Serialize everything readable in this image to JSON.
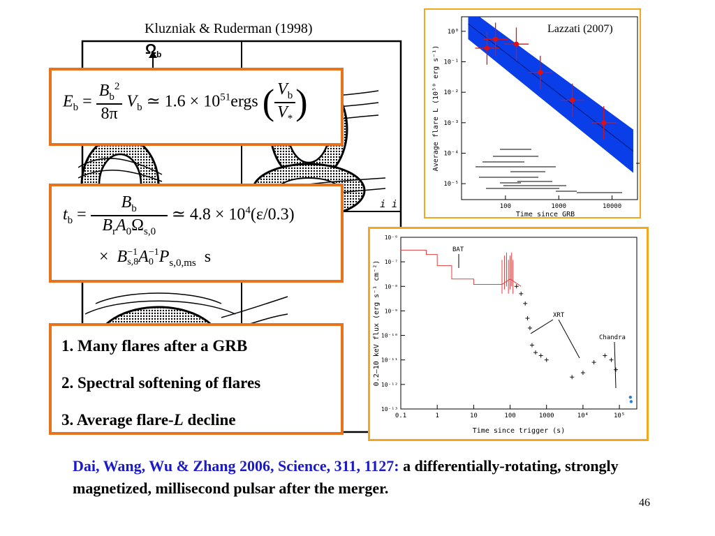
{
  "left_figure": {
    "caption": "Kluzniak & Ruderman (1998)",
    "omega_label": "Ω",
    "omega_sub": "b",
    "panel_label": "i i"
  },
  "equation1": {
    "lhs": "E",
    "lhs_sub": "b",
    "frac_num": "B",
    "frac_num_sub": "b",
    "frac_num_sup": "2",
    "frac_den": "8π",
    "v": "V",
    "v_sub": "b",
    "approx": "≃ 1.6 × 10",
    "exp": "51",
    "unit": "ergs",
    "paren_num": "V",
    "paren_num_sub": "b",
    "paren_den": "V",
    "paren_den_sub": "*"
  },
  "equation2": {
    "lhs": "t",
    "lhs_sub": "b",
    "frac_num": "B",
    "frac_num_sub": "b",
    "frac_den": "B",
    "frac_den_sub1": "r",
    "frac_den_mid": "A",
    "frac_den_sub2": "0",
    "frac_den_omega": "Ω",
    "frac_den_sub3": "s,0",
    "approx": "≃ 4.8 × 10",
    "exp": "4",
    "tail": "(ε/0.3)",
    "line2_times": "×",
    "line2_b": "B",
    "line2_b_sub": "s,8",
    "line2_b_sup": "−1",
    "line2_a": "A",
    "line2_a_sub": "0",
    "line2_a_sup": "−1",
    "line2_p": "P",
    "line2_p_sub": "s,0,ms",
    "line2_unit": "s"
  },
  "bullets": [
    {
      "text": "1. Many flares after a GRB"
    },
    {
      "text": "2. Spectral softening of flares"
    },
    {
      "text_pre": "3. Average flare-",
      "text_italic": "L",
      "text_post": " decline"
    }
  ],
  "top_chart": {
    "caption": "Lazzati (2007)",
    "xlabel": "Time since GRB",
    "ylabel": "Average flare L (10⁵⁰ erg s⁻¹)",
    "x_ticks": [
      "100",
      "1000",
      "10000"
    ],
    "y_ticks": [
      "10⁰",
      "10⁻¹",
      "10⁻²",
      "10⁻³",
      "10⁻⁴",
      "10⁻⁵"
    ]
  },
  "chart_data": [
    {
      "type": "scatter",
      "title": "",
      "caption": "Lazzati (2007)",
      "xlabel": "Time since GRB",
      "ylabel": "Average flare L (10⁵⁰ erg s⁻¹)",
      "x_scale": "log",
      "y_scale": "log",
      "xlim": [
        15,
        30000
      ],
      "ylim": [
        3e-06,
        3
      ],
      "points": [
        {
          "x": 45,
          "y": 0.28
        },
        {
          "x": 65,
          "y": 0.55
        },
        {
          "x": 160,
          "y": 0.38
        },
        {
          "x": 450,
          "y": 0.045
        },
        {
          "x": 1800,
          "y": 0.0055
        },
        {
          "x": 7000,
          "y": 0.001
        }
      ],
      "band_color": "#0a3ee8",
      "point_color": "#dd1111"
    },
    {
      "type": "line",
      "title": "",
      "xlabel": "Time since trigger (s)",
      "ylabel": "0.2–10 keV flux (erg s⁻¹ cm⁻²)",
      "x_scale": "log",
      "y_scale": "log",
      "xlim": [
        0.1,
        300000
      ],
      "ylim": [
        1e-13,
        1e-06
      ],
      "x_ticks": [
        "0.1",
        "1",
        "10",
        "100",
        "1000",
        "10⁴",
        "10⁵"
      ],
      "y_ticks": [
        "10⁻¹³",
        "10⁻¹²",
        "10⁻¹¹",
        "10⁻¹⁰",
        "10⁻⁹",
        "10⁻⁸",
        "10⁻⁷",
        "10⁻⁶"
      ],
      "annotations": [
        "BAT",
        "XRT",
        "Chandra"
      ],
      "series": [
        {
          "name": "BAT",
          "color": "#e04040",
          "x": [
            0.1,
            0.5,
            0.5,
            1,
            1,
            2.5,
            2.5,
            10,
            10,
            60,
            100,
            200
          ],
          "y": [
            3e-07,
            3e-07,
            2e-07,
            2e-07,
            7e-08,
            7e-08,
            2e-08,
            2e-08,
            1.2e-08,
            1.2e-08,
            2e-08,
            1e-08
          ]
        },
        {
          "name": "XRT",
          "color": "#111111",
          "x": [
            150,
            200,
            260,
            300,
            350,
            400,
            500,
            700,
            1000,
            5000,
            10000,
            20000,
            40000,
            60000,
            80000
          ],
          "y": [
            1e-08,
            5e-09,
            2e-09,
            5e-10,
            2e-10,
            4e-11,
            2e-11,
            1.5e-11,
            1e-11,
            2e-12,
            3e-12,
            8e-12,
            1.5e-11,
            1e-11,
            4e-12
          ]
        },
        {
          "name": "Chandra",
          "color": "#2a7fd6",
          "x": [
            200000,
            210000
          ],
          "y": [
            3e-13,
            2e-13
          ]
        }
      ]
    }
  ],
  "bottom_chart": {
    "xlabel": "Time since trigger (s)",
    "ylabel": "0.2–10 keV flux (erg s⁻¹ cm⁻²)",
    "annot_bat": "BAT",
    "annot_xrt": "XRT",
    "annot_chandra": "Chandra"
  },
  "reference": {
    "blue_part": "Dai, Wang, Wu & Zhang 2006, Science, 311, 1127:",
    "black_part": " a differentially-rotating, strongly magnetized, millisecond pulsar after the merger."
  },
  "slide_number": "46",
  "colors": {
    "orange_border": "#e8731c",
    "chart_border": "#f2a81d",
    "reference_blue": "#1a1acc"
  }
}
